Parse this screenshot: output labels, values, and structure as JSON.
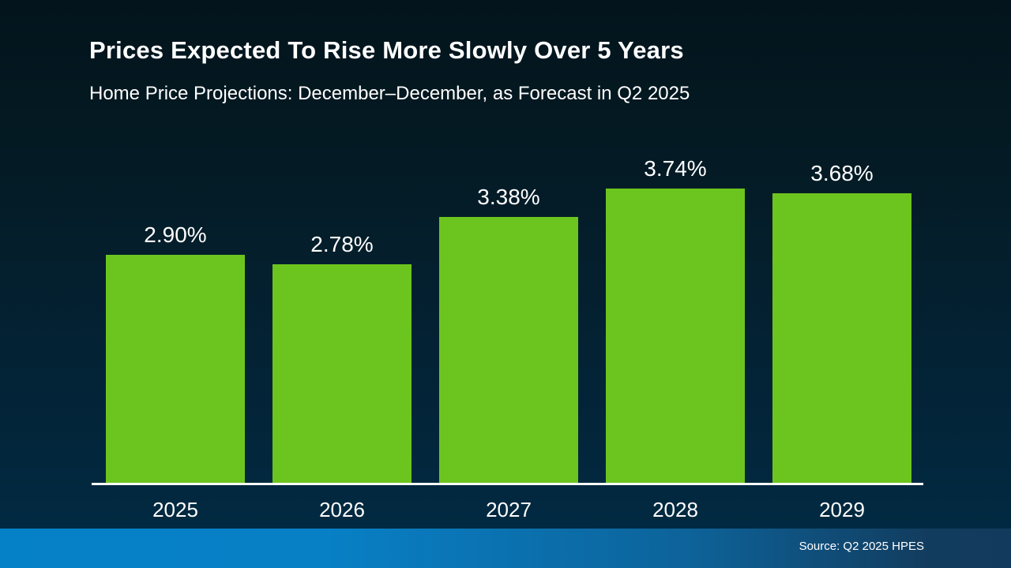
{
  "slide": {
    "title": "Prices Expected To Rise More Slowly Over 5 Years",
    "subtitle": "Home Price Projections: December–December, as Forecast in Q2 2025",
    "source": "Source: Q2 2025 HPES"
  },
  "colors": {
    "bar_green": "#6cc51e",
    "background_top": "#03141c",
    "background_bottom": "#012a42",
    "footer_blue_left": "#0581c8",
    "footer_blue_right": "#113a5c",
    "axis": "#ffffff",
    "text": "#ffffff"
  },
  "chart_data": {
    "type": "bar",
    "title": "Prices Expected To Rise More Slowly Over 5 Years",
    "subtitle": "Home Price Projections: December–December, as Forecast in Q2 2025",
    "categories": [
      "2025",
      "2026",
      "2027",
      "2028",
      "2029"
    ],
    "values": [
      2.9,
      2.78,
      3.38,
      3.74,
      3.68
    ],
    "value_labels": [
      "2.90%",
      "2.78%",
      "3.38%",
      "3.74%",
      "3.68%"
    ],
    "unit": "%",
    "xlabel": "",
    "ylabel": "",
    "ylim": [
      0,
      4.2
    ],
    "grid": false,
    "legend": false,
    "annotation": "Source: Q2 2025 HPES"
  }
}
